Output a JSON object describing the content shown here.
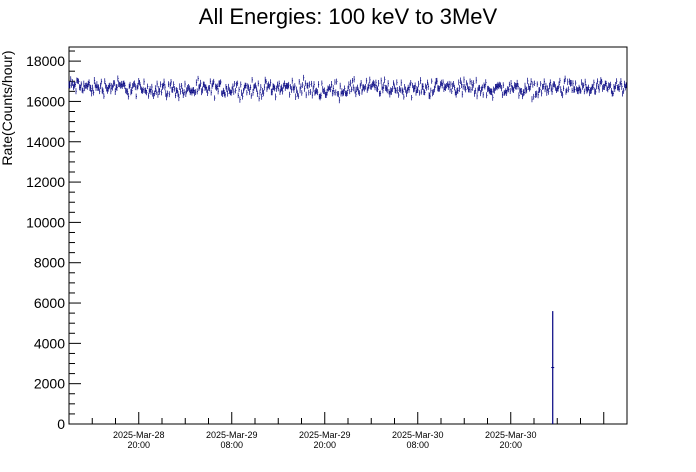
{
  "chart_data": {
    "type": "line",
    "title": "All Energies:  100 keV to 3MeV",
    "xlabel": "",
    "ylabel": "Rate(Counts/hour)",
    "x_axis": {
      "type": "time",
      "range": [
        "2025-03-28 11:00",
        "2025-03-31 11:00"
      ],
      "ticks": [
        {
          "line1": "2025-Mar-28",
          "line2": "20:00",
          "t": "2025-03-28 20:00"
        },
        {
          "line1": "2025-Mar-29",
          "line2": "08:00",
          "t": "2025-03-29 08:00"
        },
        {
          "line1": "2025-Mar-29",
          "line2": "20:00",
          "t": "2025-03-29 20:00"
        },
        {
          "line1": "2025-Mar-30",
          "line2": "08:00",
          "t": "2025-03-30 08:00"
        },
        {
          "line1": "2025-Mar-30",
          "line2": "20:00",
          "t": "2025-03-30 20:00"
        }
      ]
    },
    "ylim": [
      0,
      18700
    ],
    "y_ticks": [
      0,
      2000,
      4000,
      6000,
      8000,
      10000,
      12000,
      14000,
      16000,
      18000
    ],
    "series": [
      {
        "color": "#000080",
        "baseline": 16600,
        "fluctuation": 450,
        "error": 130,
        "x": [
          "2025-03-28 11:00",
          "2025-03-28 14:00",
          "2025-03-28 17:00",
          "2025-03-28 20:00",
          "2025-03-28 23:00",
          "2025-03-29 02:00",
          "2025-03-29 05:00",
          "2025-03-29 08:00",
          "2025-03-29 11:00",
          "2025-03-29 14:00",
          "2025-03-29 17:00",
          "2025-03-29 20:00",
          "2025-03-29 23:00",
          "2025-03-30 02:00",
          "2025-03-30 05:00",
          "2025-03-30 08:00",
          "2025-03-30 11:00",
          "2025-03-30 14:00",
          "2025-03-30 17:00",
          "2025-03-30 20:00",
          "2025-03-30 23:00",
          "2025-03-31 02:00",
          "2025-03-31 05:00",
          "2025-03-31 08:00",
          "2025-03-31 11:00"
        ],
        "y": [
          16800,
          16700,
          16750,
          16600,
          16650,
          16550,
          16600,
          16650,
          16600,
          16700,
          16650,
          16550,
          16600,
          16700,
          16650,
          16600,
          16750,
          16700,
          16600,
          16650,
          16600,
          16700,
          16650,
          16600,
          16700
        ],
        "outlier": {
          "x": "2025-03-31 01:25",
          "y": 2800,
          "low": 0,
          "high": 5600
        }
      }
    ],
    "grid": false,
    "legend": "none"
  }
}
